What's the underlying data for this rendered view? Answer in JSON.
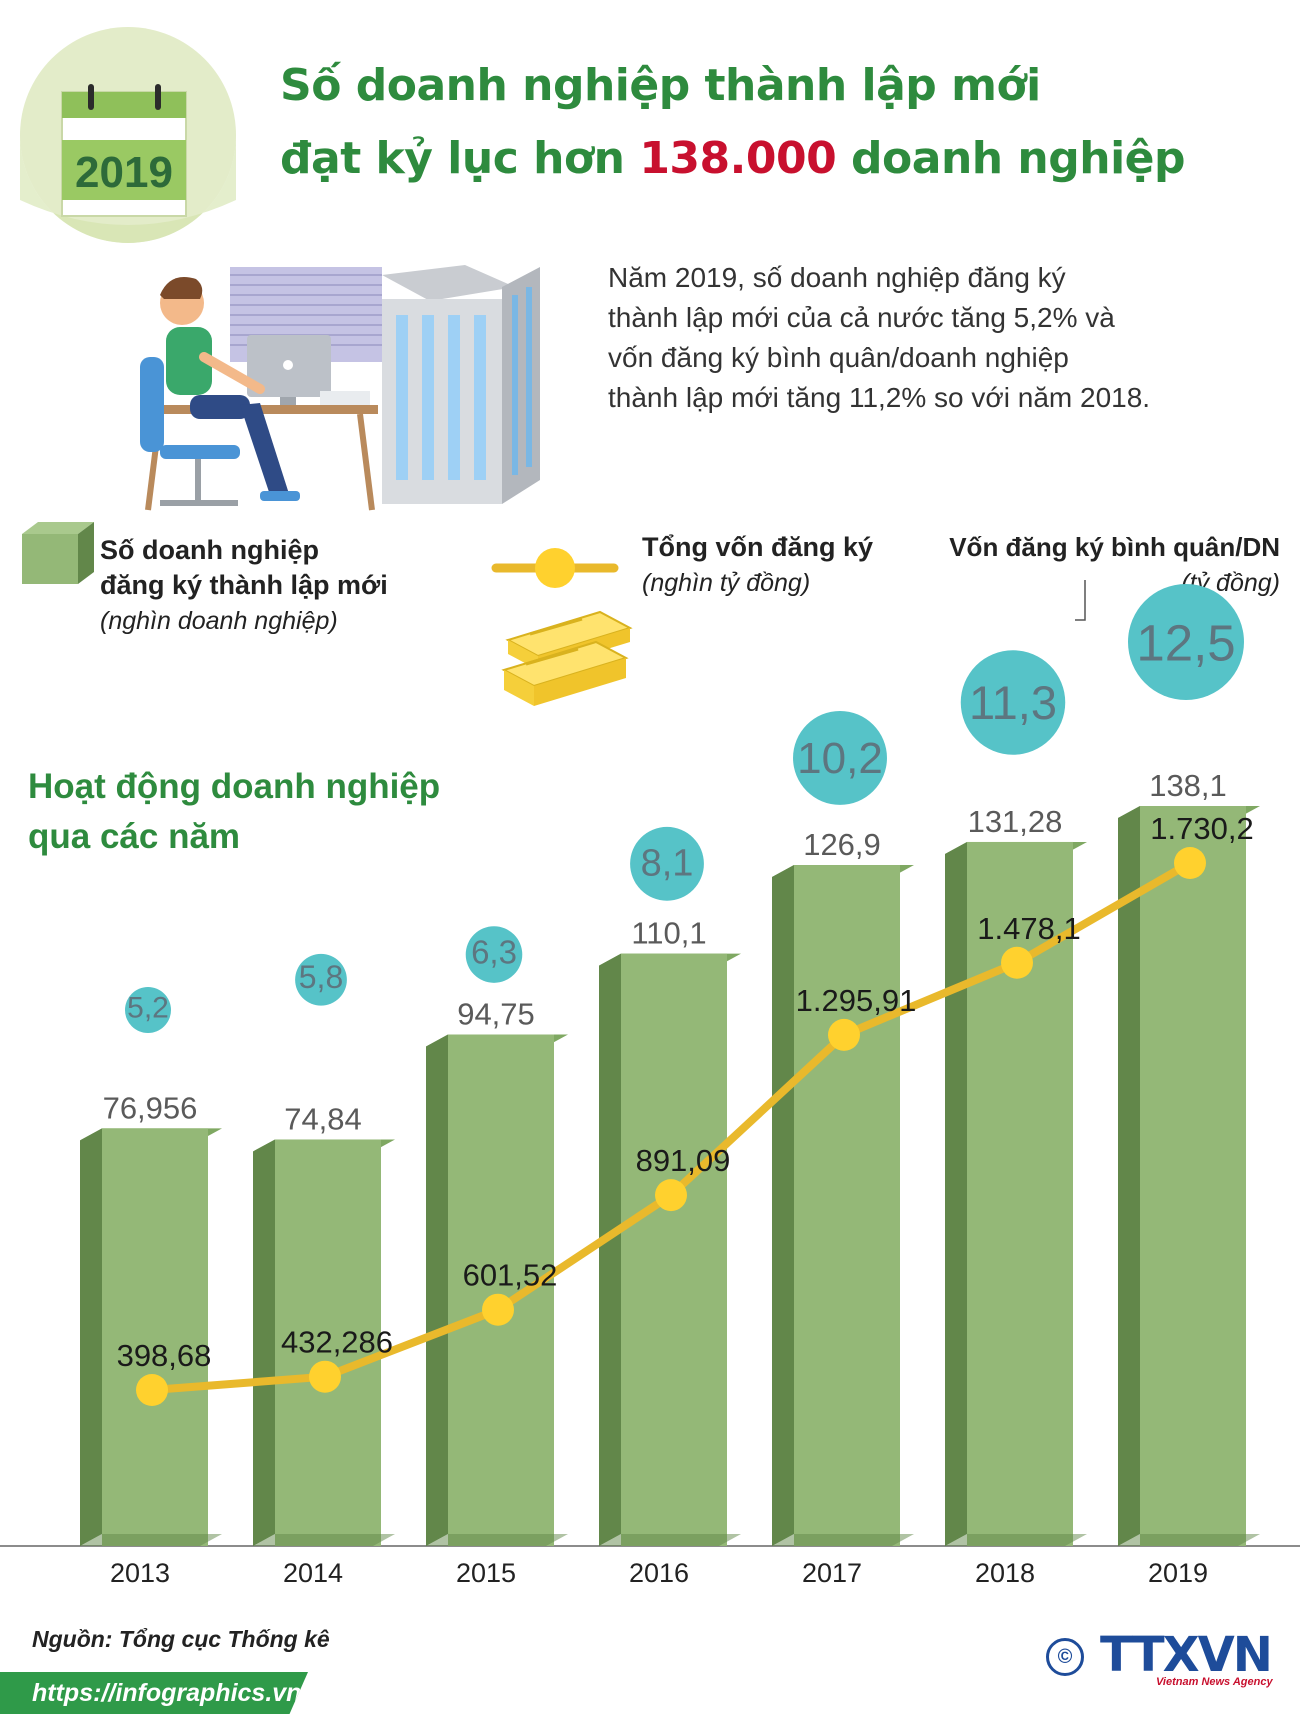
{
  "header": {
    "calendar_year": "2019",
    "title_line1": "Số doanh nghiệp thành lập mới",
    "title_line2_pre": "đạt kỷ lục hơn ",
    "title_line2_highlight": "138.000",
    "title_line2_post": " doanh nghiệp"
  },
  "intro": {
    "lines": [
      "Năm 2019, số doanh nghiệp đăng ký",
      "thành lập mới của cả nước tăng 5,2% và",
      "vốn đăng ký bình quân/doanh nghiệp",
      "thành lập mới tăng 11,2% so với năm 2018."
    ]
  },
  "legend": {
    "bars_label_line1": "Số doanh nghiệp",
    "bars_label_line2": "đăng ký thành lập mới",
    "bars_unit": "(nghìn doanh nghiệp)",
    "line_label": "Tổng vốn đăng ký",
    "line_unit": "(nghìn tỷ đồng)",
    "bubble_label": "Vốn đăng ký bình quân/DN",
    "bubble_unit": "(tỷ đồng)"
  },
  "section": {
    "line1": "Hoạt động doanh nghiệp",
    "line2": "qua các năm"
  },
  "chart_data": {
    "type": "bar",
    "title": "Hoạt động doanh nghiệp qua các năm",
    "categories": [
      "2013",
      "2014",
      "2015",
      "2016",
      "2017",
      "2018",
      "2019"
    ],
    "series": [
      {
        "name": "Số doanh nghiệp đăng ký thành lập mới (nghìn doanh nghiệp)",
        "type": "bar",
        "values": [
          76.956,
          74.84,
          94.75,
          110.1,
          126.9,
          131.28,
          138.1
        ],
        "labels": [
          "76,956",
          "74,84",
          "94,75",
          "110,1",
          "126,9",
          "131,28",
          "138,1"
        ]
      },
      {
        "name": "Tổng vốn đăng ký (nghìn tỷ đồng)",
        "type": "line",
        "values": [
          398.68,
          432.286,
          601.52,
          891.09,
          1295.91,
          1478.1,
          1730.2
        ],
        "labels": [
          "398,68",
          "432,286",
          "601,52",
          "891,09",
          "1.295,91",
          "1.478,1",
          "1.730,2"
        ]
      },
      {
        "name": "Vốn đăng ký bình quân/DN (tỷ đồng)",
        "type": "bubble",
        "values": [
          5.2,
          5.8,
          6.3,
          8.1,
          10.2,
          11.3,
          12.5
        ],
        "labels": [
          "5,2",
          "5,8",
          "6,3",
          "8,1",
          "10,2",
          "11,3",
          "12,5"
        ]
      }
    ],
    "colors": {
      "bar_front": "#94b877",
      "bar_top": "#7fa862",
      "bar_side": "#62874a",
      "line": "#e9b92c",
      "marker": "#ffd12e",
      "bubble": "#56c3c8",
      "bubble_text": "#5d7680"
    }
  },
  "footer": {
    "source": "Nguồn: Tổng cục Thống kê",
    "url": "https://infographics.vn",
    "logo_copyright": "©",
    "logo_text": "TTXVN",
    "logo_sub": "Vietnam News Agency"
  }
}
